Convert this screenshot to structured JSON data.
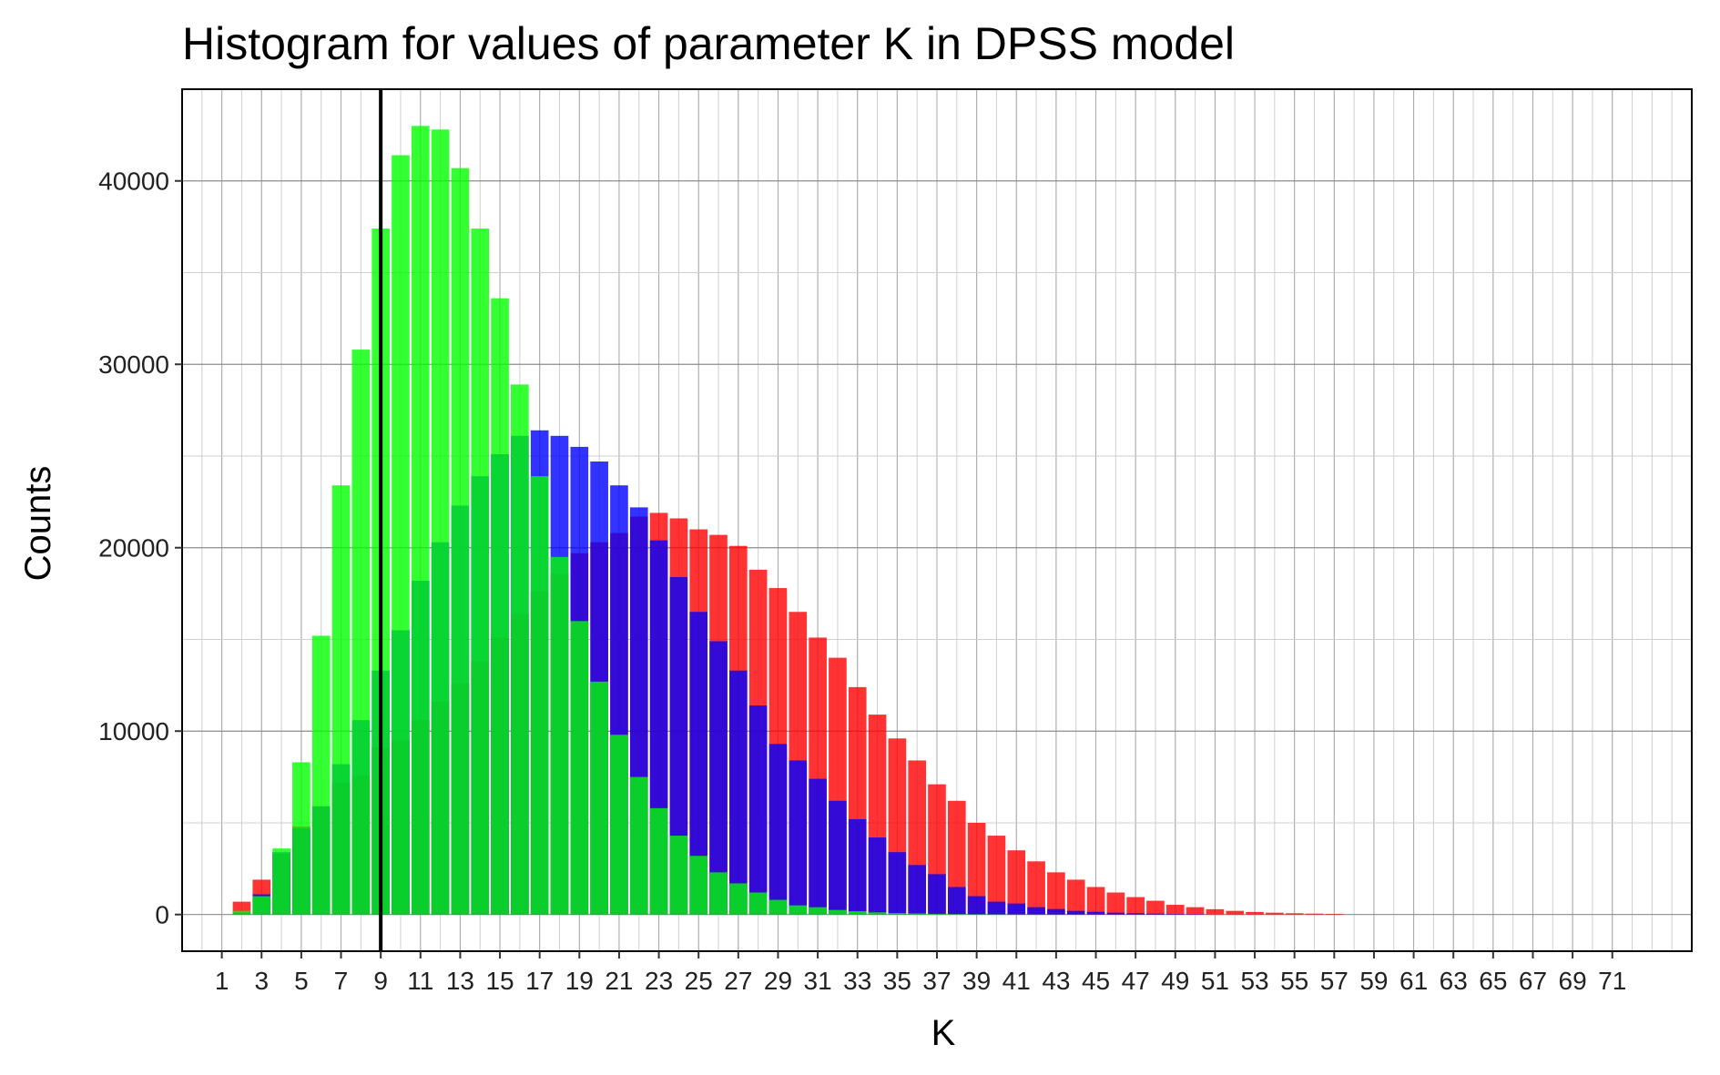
{
  "chart_data": {
    "type": "bar",
    "title": "Histogram for values of parameter K in DPSS model",
    "xlabel": "K",
    "ylabel": "Counts",
    "ylim": [
      -2000,
      45000
    ],
    "xlim": [
      -1,
      75
    ],
    "x_ticks": [
      1,
      3,
      5,
      7,
      9,
      11,
      13,
      15,
      17,
      19,
      21,
      23,
      25,
      27,
      29,
      31,
      33,
      35,
      37,
      39,
      41,
      43,
      45,
      47,
      49,
      51,
      53,
      55,
      57,
      59,
      61,
      63,
      65,
      67,
      69,
      71
    ],
    "x_tick_labels": [
      "1",
      "3",
      "5",
      "7",
      "9",
      "11",
      "13",
      "15",
      "17",
      "19",
      "21",
      "23",
      "25",
      "27",
      "29",
      "31",
      "33",
      "35",
      "37",
      "39",
      "41",
      "43",
      "45",
      "47",
      "49",
      "51",
      "53",
      "55",
      "57",
      "59",
      "61",
      "63",
      "65",
      "67",
      "69",
      "71"
    ],
    "y_ticks": [
      0,
      10000,
      20000,
      30000,
      40000
    ],
    "y_tick_labels": [
      "0",
      "10000",
      "20000",
      "30000",
      "40000"
    ],
    "grid": true,
    "vline": {
      "x": 9,
      "color": "#000000"
    },
    "series": [
      {
        "color": "#ff0000",
        "x": [
          2,
          3,
          4,
          5,
          6,
          7,
          8,
          9,
          10,
          11,
          12,
          13,
          14,
          15,
          16,
          17,
          18,
          19,
          20,
          21,
          22,
          23,
          24,
          25,
          26,
          27,
          28,
          29,
          30,
          31,
          32,
          33,
          34,
          35,
          36,
          37,
          38,
          39,
          40,
          41,
          42,
          43,
          44,
          45,
          46,
          47,
          48,
          49,
          50,
          51,
          52,
          53,
          54,
          55,
          56,
          57
        ],
        "values": [
          700,
          1900,
          3300,
          4800,
          5900,
          7200,
          7600,
          9100,
          9500,
          10600,
          11600,
          12600,
          13800,
          15100,
          16400,
          17600,
          18600,
          19700,
          20300,
          20800,
          21700,
          21900,
          21600,
          21000,
          20700,
          20100,
          18800,
          17800,
          16500,
          15100,
          14000,
          12400,
          10900,
          9600,
          8400,
          7100,
          6200,
          5000,
          4300,
          3500,
          2900,
          2300,
          1900,
          1500,
          1200,
          950,
          750,
          530,
          400,
          290,
          200,
          140,
          100,
          70,
          50,
          35
        ]
      },
      {
        "color": "#0000ff",
        "x": [
          2,
          3,
          4,
          5,
          6,
          7,
          8,
          9,
          10,
          11,
          12,
          13,
          14,
          15,
          16,
          17,
          18,
          19,
          20,
          21,
          22,
          23,
          24,
          25,
          26,
          27,
          28,
          29,
          30,
          31,
          32,
          33,
          34,
          35,
          36,
          37,
          38,
          39,
          40,
          41,
          42,
          43,
          44,
          45,
          46,
          47,
          48,
          49,
          50
        ],
        "values": [
          100,
          1100,
          3400,
          4700,
          5900,
          8200,
          10600,
          13300,
          15500,
          18200,
          20300,
          22300,
          23900,
          25100,
          26100,
          26400,
          26100,
          25500,
          24700,
          23400,
          22200,
          20400,
          18400,
          16500,
          14900,
          13300,
          11400,
          9300,
          8400,
          7400,
          6200,
          5200,
          4200,
          3400,
          2700,
          2200,
          1500,
          1000,
          700,
          600,
          400,
          300,
          200,
          150,
          100,
          70,
          50,
          30,
          20
        ]
      },
      {
        "color": "#00ff00",
        "x": [
          2,
          3,
          4,
          5,
          6,
          7,
          8,
          9,
          10,
          11,
          12,
          13,
          14,
          15,
          16,
          17,
          18,
          19,
          20,
          21,
          22,
          23,
          24,
          25,
          26,
          27,
          28,
          29,
          30,
          31,
          32,
          33,
          34,
          35,
          36,
          37,
          38,
          39,
          40,
          41,
          42,
          43,
          44,
          45
        ],
        "values": [
          200,
          1000,
          3600,
          8300,
          15200,
          23400,
          30800,
          37400,
          41400,
          43000,
          42800,
          40700,
          37400,
          33600,
          28900,
          23900,
          19500,
          16000,
          12700,
          9800,
          7500,
          5800,
          4300,
          3200,
          2300,
          1700,
          1200,
          800,
          500,
          400,
          250,
          180,
          120,
          80,
          60,
          40,
          30,
          20,
          15,
          10,
          8,
          5,
          3,
          2
        ]
      }
    ]
  }
}
